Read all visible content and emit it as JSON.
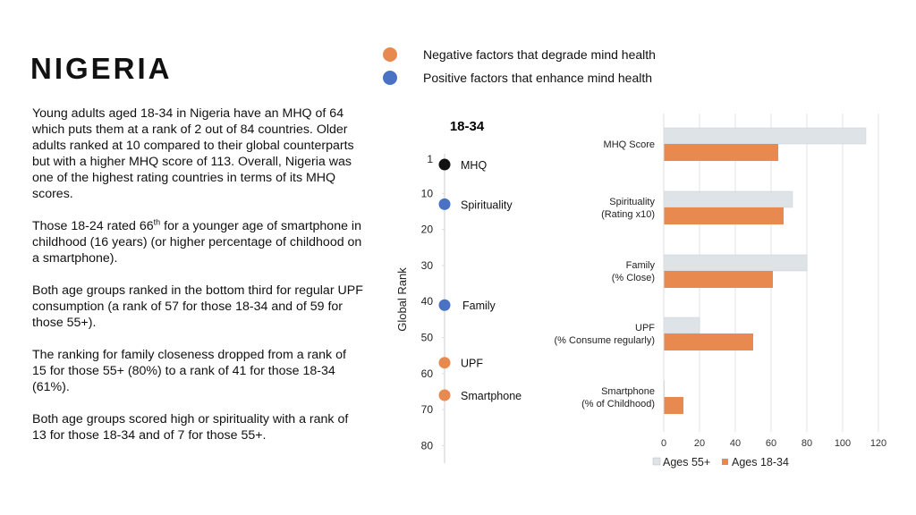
{
  "title": "NIGERIA",
  "paragraphs": [
    {
      "text": "Young adults aged 18-34 in Nigeria have an MHQ of 64 which puts them at a rank of 2 out of 84 countries. Older adults ranked at 10 compared to their global counterparts but with a higher MHQ score of 113. Overall, Nigeria was one of the highest rating countries in terms of its MHQ scores."
    },
    {
      "pre": "Those 18-24 rated 66",
      "sup": "th",
      "post": " for a younger age of smartphone in childhood (16 years) (or higher percentage of childhood on a smartphone)."
    },
    {
      "text": "Both age groups ranked in the bottom third for regular UPF consumption (a rank of 57 for those 18-34 and of 59 for those 55+)."
    },
    {
      "text": "The ranking for family closeness dropped from a rank of 15 for those 55+ (80%) to a rank of 41 for those 18-34 (61%)."
    },
    {
      "text": "Both age groups scored high or spirituality with a rank of 13 for those 18-34 and of 7 for those 55+."
    }
  ],
  "factor_legend": [
    {
      "label": "Negative factors that degrade mind health",
      "color": "#E8894F"
    },
    {
      "label": "Positive factors that enhance mind health",
      "color": "#4A72C4"
    }
  ],
  "chart_data": [
    {
      "type": "scatter",
      "title": "18-34",
      "ylabel": "Global Rank",
      "ylim": [
        1,
        80
      ],
      "y_inverted": true,
      "yticks": [
        1,
        10,
        20,
        30,
        40,
        50,
        60,
        70,
        80
      ],
      "points": [
        {
          "label": "MHQ",
          "rank": 2,
          "color": "#111111"
        },
        {
          "label": "Spirituality",
          "rank": 13,
          "color": "#4A72C4"
        },
        {
          "label": "Family",
          "rank": 41,
          "color": "#4A72C4"
        },
        {
          "label": "UPF",
          "rank": 57,
          "color": "#E8894F"
        },
        {
          "label": "Smartphone",
          "rank": 66,
          "color": "#E8894F"
        }
      ]
    },
    {
      "type": "bar",
      "orientation": "horizontal",
      "categories": [
        [
          "MHQ Score"
        ],
        [
          "Spirituality",
          "(Rating x10)"
        ],
        [
          "Family",
          "(% Close)"
        ],
        [
          "UPF",
          "(% Consume regularly)"
        ],
        [
          "Smartphone",
          "(% of Childhood)"
        ]
      ],
      "xlim": [
        0,
        120
      ],
      "xticks": [
        0,
        20,
        40,
        60,
        80,
        100,
        120
      ],
      "grid": true,
      "legend_position": "bottom",
      "series": [
        {
          "name": "Ages 55+",
          "color": "#DDE3E6",
          "values": [
            113,
            72,
            80,
            20,
            0
          ]
        },
        {
          "name": "Ages 18-34",
          "color": "#E8894F",
          "values": [
            64,
            67,
            61,
            50,
            11
          ]
        }
      ]
    }
  ]
}
